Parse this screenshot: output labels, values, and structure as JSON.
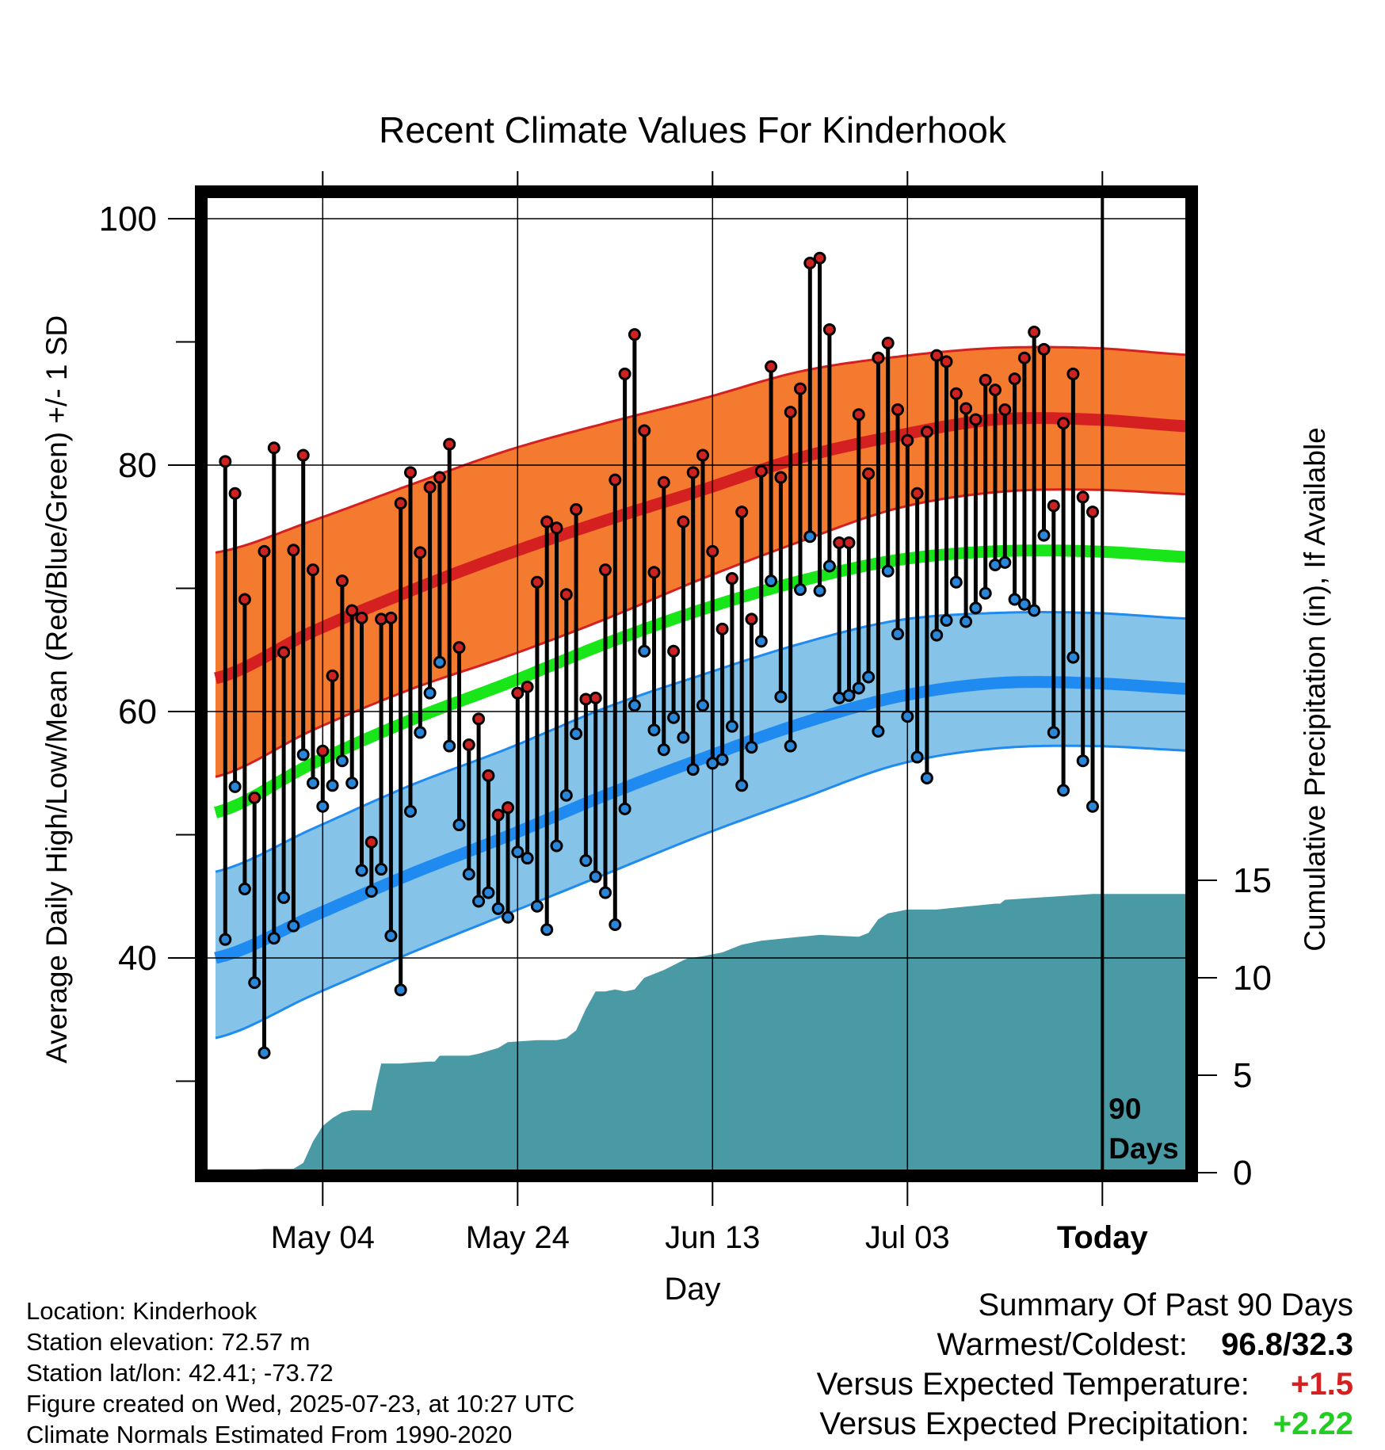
{
  "chart_data": {
    "type": "line",
    "title": "Recent Climate Values For Kinderhook",
    "xlabel": "Day",
    "ylabel": "Average Daily High/Low/Mean (Red/Blue/Green) +/- 1 SD",
    "y2label": "Cumulative Precipitation (in), If Available",
    "x_tick_labels": [
      "May 04",
      "May 24",
      "Jun 13",
      "Jul 03",
      "Today"
    ],
    "x_tick_days": [
      11,
      31,
      51,
      71,
      91
    ],
    "xlim_days": [
      0,
      101
    ],
    "ylim": [
      22,
      102
    ],
    "y_ticks": [
      40,
      60,
      80,
      100
    ],
    "y_minor_ticks": [
      30,
      50,
      70,
      90
    ],
    "y2lim": [
      0,
      30
    ],
    "y2_ticks": [
      0,
      5,
      10,
      15
    ],
    "grid": true,
    "today_marker_label": [
      "90",
      "Days"
    ],
    "normals": {
      "days": [
        0,
        10,
        20,
        30,
        40,
        50,
        60,
        70,
        80,
        90,
        101
      ],
      "high_mean": [
        62.7,
        66.5,
        69.8,
        72.8,
        75.5,
        78.0,
        80.6,
        82.4,
        83.7,
        83.7,
        83.1
      ],
      "high_upper": [
        72.9,
        75.5,
        78.4,
        81.2,
        83.4,
        85.4,
        87.6,
        88.8,
        89.5,
        89.5,
        88.9
      ],
      "high_lower": [
        54.7,
        58.5,
        61.8,
        64.5,
        67.5,
        70.8,
        73.8,
        76.5,
        77.8,
        78.0,
        77.6
      ],
      "mean": [
        51.8,
        55.8,
        59.3,
        62.3,
        65.5,
        68.3,
        70.6,
        72.3,
        73.0,
        73.0,
        72.5
      ],
      "low_mean": [
        40.0,
        43.4,
        46.8,
        49.9,
        53.2,
        56.2,
        59.0,
        61.2,
        62.3,
        62.3,
        61.8
      ],
      "low_upper": [
        47.0,
        50.5,
        54.0,
        57.0,
        60.3,
        63.0,
        65.5,
        67.4,
        68.0,
        68.0,
        67.5
      ],
      "low_lower": [
        33.5,
        37.0,
        40.4,
        43.6,
        46.8,
        50.0,
        52.9,
        55.7,
        57.0,
        57.2,
        56.8
      ]
    },
    "series": [
      {
        "name": "High",
        "color": "#cc2222",
        "values": [
          80.3,
          77.7,
          69.1,
          53.0,
          73.0,
          81.4,
          64.8,
          73.1,
          80.8,
          71.5,
          56.8,
          62.9,
          70.6,
          68.2,
          67.6,
          49.4,
          67.5,
          67.6,
          76.9,
          79.4,
          72.9,
          78.2,
          79.0,
          81.7,
          65.2,
          57.3,
          59.4,
          54.8,
          51.6,
          52.2,
          61.5,
          62.0,
          70.5,
          75.4,
          74.9,
          69.5,
          76.4,
          61.0,
          61.1,
          71.5,
          78.8,
          87.4,
          90.6,
          82.8,
          71.3,
          78.6,
          64.9,
          75.4,
          79.4,
          80.8,
          73.0,
          66.7,
          70.8,
          76.2,
          67.5,
          79.5,
          88.0,
          79.0,
          84.3,
          86.2,
          96.4,
          96.8,
          91.0,
          73.7,
          73.7,
          84.1,
          79.3,
          88.7,
          89.9,
          84.5,
          82.0,
          77.7,
          82.7,
          88.9,
          88.4,
          85.8,
          84.6,
          83.7,
          86.9,
          86.1,
          84.5,
          87.0,
          88.7,
          90.8,
          89.4,
          76.7,
          83.4,
          87.4,
          77.4,
          76.2
        ]
      },
      {
        "name": "Low",
        "color": "#2a86d8",
        "values": [
          41.5,
          53.9,
          45.6,
          38.0,
          32.3,
          41.6,
          44.9,
          42.6,
          56.5,
          54.2,
          52.3,
          54.0,
          56.0,
          54.2,
          47.1,
          45.4,
          47.2,
          41.8,
          37.4,
          51.9,
          58.3,
          61.5,
          64.0,
          57.2,
          50.8,
          46.8,
          44.6,
          45.3,
          44.0,
          43.3,
          48.6,
          48.1,
          44.2,
          42.3,
          49.1,
          53.2,
          58.2,
          47.9,
          46.6,
          45.3,
          42.7,
          52.1,
          60.5,
          64.9,
          58.5,
          56.9,
          59.5,
          57.9,
          55.3,
          60.5,
          55.8,
          56.1,
          58.8,
          54.0,
          57.1,
          65.7,
          70.6,
          61.2,
          57.2,
          69.9,
          74.2,
          69.8,
          71.8,
          61.1,
          61.3,
          61.9,
          62.8,
          58.4,
          71.4,
          66.3,
          59.6,
          56.3,
          54.6,
          66.2,
          67.4,
          70.5,
          67.3,
          68.4,
          69.6,
          71.9,
          72.1,
          69.1,
          68.7,
          68.2,
          74.3,
          58.3,
          53.6,
          64.4,
          56.0,
          52.3
        ]
      }
    ],
    "precipitation": {
      "days": [
        0,
        2,
        5,
        8,
        9,
        10,
        11,
        12,
        13,
        14,
        16,
        16.5,
        17,
        19,
        22,
        22.5,
        23,
        26,
        27,
        29,
        30,
        33,
        34,
        35,
        36,
        37,
        38,
        39,
        40,
        41,
        42,
        43,
        44,
        46,
        48,
        48.5,
        50,
        52,
        53,
        54,
        55,
        56,
        58,
        60,
        62,
        66,
        67,
        68,
        69,
        70,
        71,
        72,
        74,
        76,
        78,
        80,
        80.5,
        81,
        84,
        87,
        90,
        101
      ],
      "values": [
        0,
        0.1,
        0.2,
        0.2,
        0.5,
        1.6,
        2.4,
        2.8,
        3.1,
        3.2,
        3.2,
        4.5,
        5.6,
        5.6,
        5.7,
        5.7,
        6.0,
        6.0,
        6.1,
        6.4,
        6.7,
        6.8,
        6.8,
        6.8,
        6.9,
        7.3,
        8.4,
        9.3,
        9.3,
        9.4,
        9.3,
        9.4,
        10.0,
        10.4,
        10.9,
        11.0,
        11.1,
        11.3,
        11.5,
        11.7,
        11.8,
        11.9,
        12.0,
        12.1,
        12.2,
        12.1,
        12.3,
        13.0,
        13.3,
        13.4,
        13.5,
        13.5,
        13.5,
        13.6,
        13.7,
        13.8,
        13.8,
        14.0,
        14.1,
        14.2,
        14.3,
        14.3
      ]
    }
  },
  "footer": {
    "location": "Location: Kinderhook",
    "elevation": "Station elevation: 72.57 m",
    "latlon": "Station lat/lon: 42.41; -73.72",
    "created": "Figure created on Wed, 2025-07-23, at 10:27 UTC",
    "normals": "Climate Normals Estimated From 1990-2020"
  },
  "summary": {
    "title": "Summary Of Past 90 Days",
    "warmest_coldest_label": "Warmest/Coldest:",
    "warmest_coldest_value": "96.8/32.3",
    "temp_label": "Versus Expected Temperature:",
    "temp_value": "+1.5",
    "temp_color": "#d42020",
    "precip_label": "Versus Expected Precipitation:",
    "precip_value": "+2.22",
    "precip_color": "#22cc22"
  },
  "colors": {
    "high_band": "#f47a30",
    "high_line": "#d42020",
    "low_band": "#85c3e8",
    "low_line": "#1f8bf0",
    "mean_line": "#19e619",
    "precip_fill": "#4a9aa5"
  }
}
